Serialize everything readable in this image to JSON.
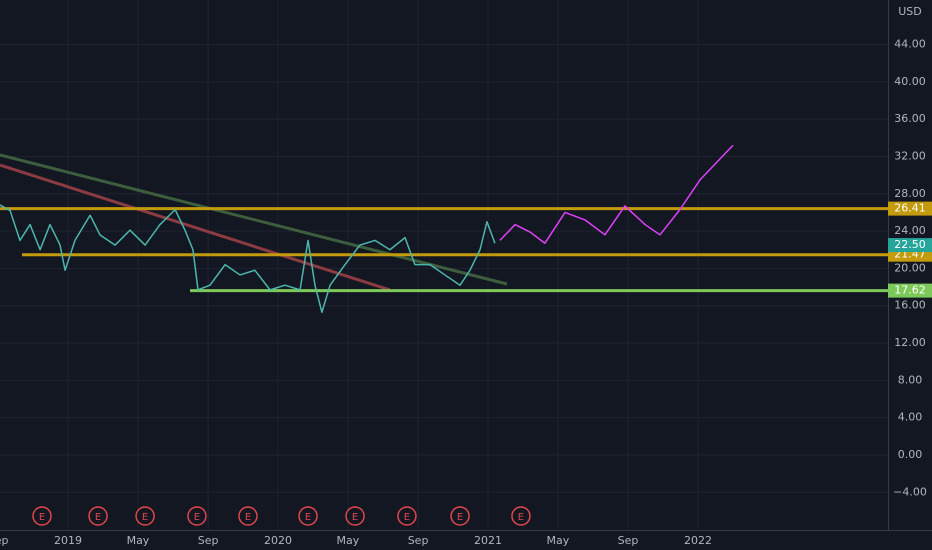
{
  "chart_data": {
    "type": "line",
    "currency_label": "USD",
    "grid": true,
    "xlim": [
      2018.676,
      2022.905
    ],
    "ylim": [
      -8.04,
      48.77
    ],
    "xticks": [
      {
        "value": 2018.667,
        "label": "Sep"
      },
      2019,
      {
        "value": 2019.333,
        "label": "May"
      },
      {
        "value": 2019.667,
        "label": "Sep"
      },
      2020,
      {
        "value": 2020.333,
        "label": "May"
      },
      {
        "value": 2020.667,
        "label": "Sep"
      },
      2021,
      {
        "value": 2021.333,
        "label": "May"
      },
      {
        "value": 2021.667,
        "label": "Sep"
      },
      2022
    ],
    "yticks": [
      {
        "value": 44,
        "label": "44.00"
      },
      {
        "value": 40,
        "label": "40.00"
      },
      {
        "value": 36,
        "label": "36.00"
      },
      {
        "value": 32,
        "label": "32.00"
      },
      {
        "value": 28,
        "label": "28.00"
      },
      {
        "value": 24,
        "label": "24.00"
      },
      {
        "value": 20,
        "label": "20.00"
      },
      {
        "value": 16,
        "label": "16.00"
      },
      {
        "value": 12,
        "label": "12.00"
      },
      {
        "value": 8,
        "label": "8.00"
      },
      {
        "value": 4,
        "label": "4.00"
      },
      {
        "value": 0,
        "label": "0.00"
      },
      {
        "value": -4,
        "label": "−4.00"
      }
    ],
    "series": [
      {
        "color": "#4db6ac",
        "x": [
          2018.676,
          2018.724,
          2018.771,
          2018.819,
          2018.867,
          2018.914,
          2018.962,
          2018.986,
          2019.033,
          2019.105,
          2019.152,
          2019.224,
          2019.295,
          2019.367,
          2019.438,
          2019.51,
          2019.557,
          2019.595,
          2019.619,
          2019.676,
          2019.748,
          2019.819,
          2019.89,
          2019.962,
          2020.033,
          2020.105,
          2020.143,
          2020.176,
          2020.209,
          2020.248,
          2020.319,
          2020.39,
          2020.462,
          2020.533,
          2020.605,
          2020.652,
          2020.724,
          2020.795,
          2020.867,
          2020.914,
          2020.962,
          2020.995,
          2021.033
        ],
        "values": [
          26.8,
          26.2,
          23.0,
          24.7,
          22.0,
          24.7,
          22.5,
          19.8,
          23.0,
          25.7,
          23.6,
          22.5,
          24.1,
          22.5,
          24.7,
          26.3,
          24.1,
          22.0,
          17.7,
          18.2,
          20.4,
          19.3,
          19.8,
          17.7,
          18.2,
          17.7,
          23.0,
          18.2,
          15.3,
          18.2,
          20.4,
          22.5,
          23.0,
          22.0,
          23.3,
          20.4,
          20.4,
          19.3,
          18.2,
          19.8,
          22.0,
          25.0,
          22.7
        ]
      },
      {
        "color": "#e040fb",
        "x": [
          2021.057,
          2021.129,
          2021.2,
          2021.271,
          2021.367,
          2021.462,
          2021.557,
          2021.652,
          2021.748,
          2021.819,
          2021.914,
          2022.01,
          2022.167
        ],
        "values": [
          23.0,
          24.7,
          23.9,
          22.7,
          26.0,
          25.2,
          23.6,
          26.7,
          24.7,
          23.6,
          26.3,
          29.5,
          33.2
        ]
      }
    ],
    "trend_lines": [
      {
        "color": "#3d5e3d",
        "x": [
          2018.676,
          2021.09
        ],
        "values": [
          32.16,
          18.33
        ]
      },
      {
        "color": "#8c3b42",
        "x": [
          2018.676,
          2020.533
        ],
        "values": [
          31.08,
          17.69
        ]
      }
    ],
    "levels": [
      {
        "value": 26.41,
        "x_start": 2018.676,
        "color": "#c49b0c"
      },
      {
        "value": 21.47,
        "x_start": 2018.781,
        "color": "#c49b0c"
      },
      {
        "value": 17.62,
        "x_start": 2019.581,
        "color": "#7cc95a"
      }
    ],
    "last_price": {
      "value": 22.5,
      "label": "22.50",
      "color": "#26a69a"
    },
    "earnings": {
      "label": "E",
      "x": [
        2018.876,
        2019.143,
        2019.367,
        2019.614,
        2019.857,
        2020.143,
        2020.367,
        2020.614,
        2020.867,
        2021.157
      ]
    }
  }
}
